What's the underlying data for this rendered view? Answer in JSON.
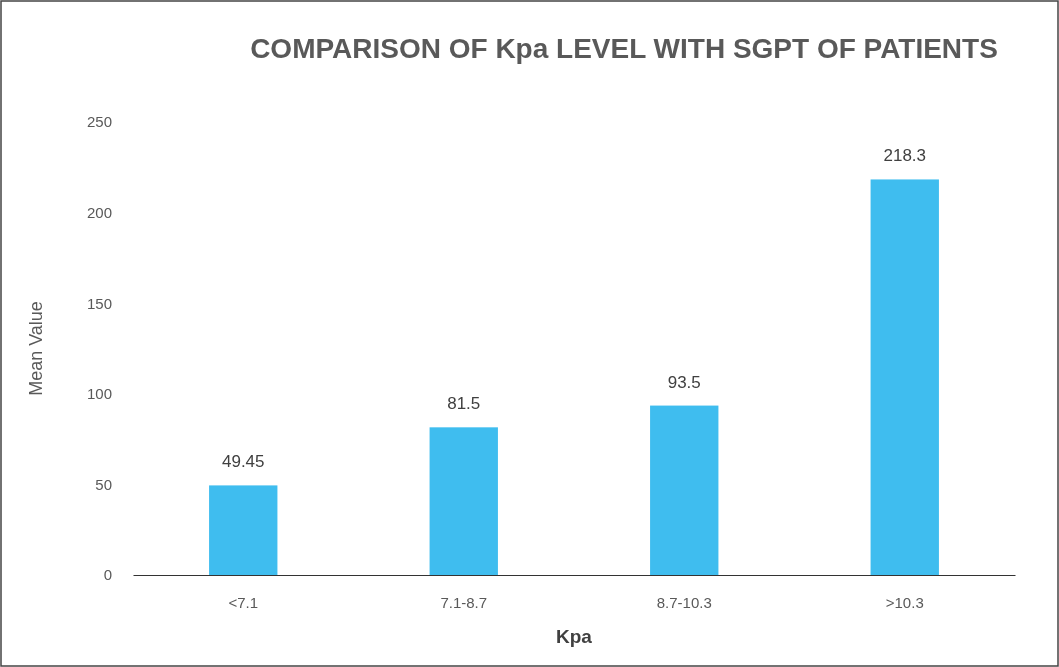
{
  "chart_data": {
    "type": "bar",
    "title": "COMPARISON OF Kpa LEVEL WITH SGPT OF PATIENTS",
    "xlabel": "Kpa",
    "ylabel": "Mean Value",
    "categories": [
      "<7.1",
      "7.1-8.7",
      "8.7-10.3",
      ">10.3"
    ],
    "values": [
      49.45,
      81.5,
      93.5,
      218.3
    ],
    "color": "#3fbdef",
    "ylim": [
      0,
      250
    ],
    "yticks": [
      0,
      50,
      100,
      150,
      200,
      250
    ],
    "data_labels": true
  }
}
